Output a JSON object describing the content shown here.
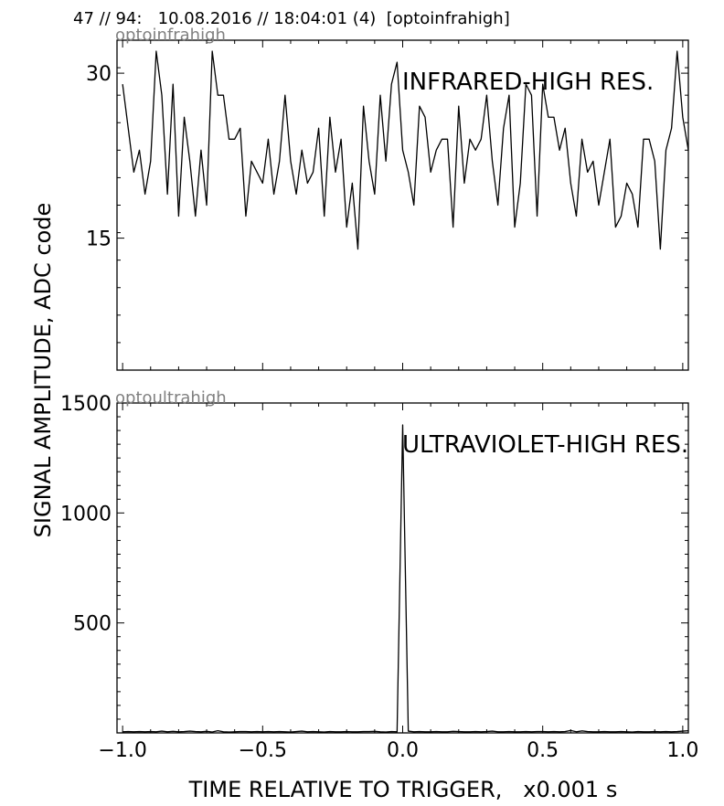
{
  "header": "47 // 94:   10.08.2016 // 18:04:01 (4)  [optoinfrahigh]",
  "ylabel": "SIGNAL AMPLITUDE,  ADC code",
  "xlabel": "TIME RELATIVE TO TRIGGER,   x0.001 s",
  "chart_data": [
    {
      "type": "line",
      "id": "optoinfrahigh",
      "panel_tag": "optoinfrahigh",
      "annotation": "INFRARED-HIGH RES.",
      "xlim": [
        -1.02,
        1.02
      ],
      "ylim": [
        3,
        33
      ],
      "yticks": [
        15,
        30
      ],
      "xticks": [
        -1.0,
        -0.5,
        0.0,
        0.5,
        1.0
      ],
      "x_start": -1.0,
      "x_step": 0.02,
      "y": [
        29,
        25,
        21,
        23,
        19,
        22,
        32,
        28,
        19,
        29,
        17,
        26,
        22,
        17,
        23,
        18,
        32,
        28,
        28,
        24,
        24,
        25,
        17,
        22,
        21,
        20,
        24,
        19,
        22,
        28,
        22,
        19,
        23,
        20,
        21,
        25,
        17,
        26,
        21,
        24,
        16,
        20,
        14,
        27,
        22,
        19,
        28,
        22,
        29,
        31,
        23,
        21,
        18,
        27,
        26,
        21,
        23,
        24,
        24,
        16,
        27,
        20,
        24,
        23,
        24,
        28,
        22,
        18,
        25,
        28,
        16,
        20,
        29,
        28,
        17,
        29,
        26,
        26,
        23,
        25,
        20,
        17,
        24,
        21,
        22,
        18,
        21,
        24,
        16,
        17,
        20,
        19,
        16,
        24,
        24,
        22,
        14,
        23,
        25,
        32,
        26,
        23
      ]
    },
    {
      "type": "line",
      "id": "optoultrahigh",
      "panel_tag": "optoultrahigh",
      "annotation": "ULTRAVIOLET-HIGH RES.",
      "xlim": [
        -1.02,
        1.02
      ],
      "ylim": [
        0,
        1500
      ],
      "yticks": [
        500,
        1000,
        1500
      ],
      "xticks": [
        -1.0,
        -0.5,
        0.0,
        0.5,
        1.0
      ],
      "xticklabels": [
        "−1.0",
        "−0.5",
        "0.0",
        "0.5",
        "1.0"
      ],
      "x_start": -1.0,
      "x_step": 0.02,
      "y": [
        5,
        6,
        5,
        6,
        5,
        6,
        5,
        8,
        5,
        7,
        5,
        6,
        8,
        6,
        5,
        7,
        4,
        10,
        5,
        4,
        5,
        6,
        6,
        5,
        6,
        5,
        6,
        5,
        6,
        5,
        4,
        6,
        8,
        5,
        6,
        5,
        4,
        6,
        5,
        5,
        6,
        5,
        5,
        6,
        6,
        7,
        5,
        4,
        6,
        5,
        1400,
        8,
        5,
        6,
        5,
        5,
        6,
        5,
        5,
        7,
        6,
        5,
        5,
        6,
        5,
        6,
        8,
        5,
        5,
        6,
        5,
        5,
        6,
        5,
        6,
        6,
        5,
        6,
        5,
        6,
        11,
        5,
        9,
        6,
        5,
        5,
        6,
        5,
        5,
        6,
        5,
        4,
        6,
        5,
        5,
        6,
        5,
        6,
        5,
        6,
        8,
        10
      ]
    }
  ]
}
